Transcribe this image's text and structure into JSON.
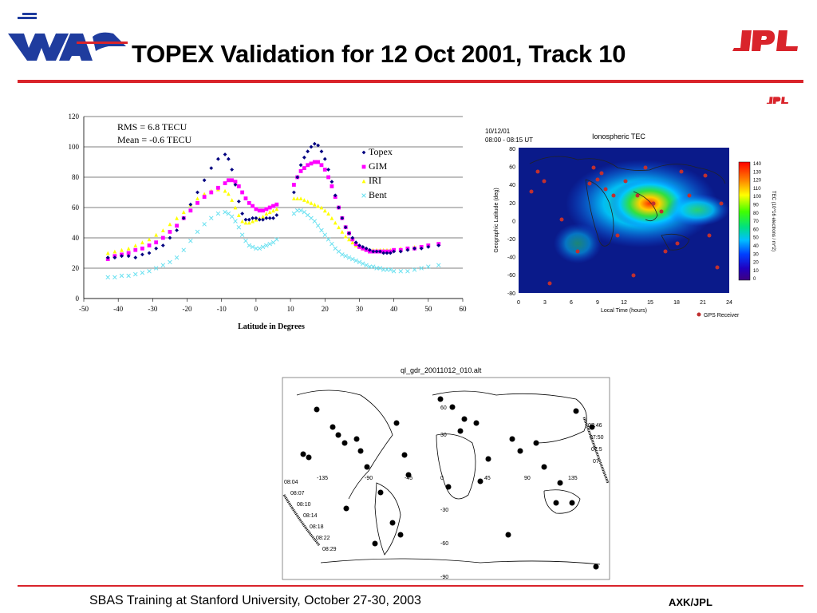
{
  "slide": {
    "title": "TOPEX Validation for 12 Oct 2001, Track 10",
    "footer": "SBAS Training at Stanford University, October 27-30, 2003",
    "author": "AXK/JPL",
    "logo_text": "JPL",
    "accent_color": "#d9242b",
    "waas_color": "#1f3c9e"
  },
  "chart_data": {
    "type": "scatter",
    "title": "",
    "xlabel": "Latitude in Degrees",
    "ylabel": "",
    "xlim": [
      -50,
      60
    ],
    "ylim": [
      0,
      120
    ],
    "x_ticks": [
      -50,
      -40,
      -30,
      -20,
      -10,
      0,
      10,
      20,
      30,
      40,
      50,
      60
    ],
    "y_ticks": [
      0,
      20,
      40,
      60,
      80,
      100,
      120
    ],
    "grid": "horizontal",
    "legend_position": "top-right",
    "annotations": [
      "RMS = 6.8 TECU",
      "Mean = -0.6 TECU"
    ],
    "series": [
      {
        "name": "Topex",
        "color": "#000080",
        "marker": "diamond",
        "x": [
          -43,
          -41,
          -39,
          -37,
          -35,
          -33,
          -31,
          -29,
          -27,
          -25,
          -23,
          -21,
          -19,
          -17,
          -15,
          -13,
          -11,
          -9,
          -8,
          -7,
          -6,
          -5,
          -4,
          -3,
          -2,
          -1,
          0,
          1,
          2,
          3,
          4,
          5,
          6,
          11,
          12,
          13,
          14,
          15,
          16,
          17,
          18,
          19,
          20,
          21,
          22,
          23,
          24,
          25,
          26,
          27,
          28,
          29,
          30,
          31,
          32,
          33,
          34,
          35,
          36,
          37,
          38,
          39,
          40,
          42,
          44,
          46,
          48,
          50,
          53
        ],
        "y": [
          27,
          27,
          28,
          28,
          27,
          29,
          30,
          33,
          35,
          40,
          45,
          53,
          62,
          70,
          78,
          86,
          92,
          95,
          92,
          85,
          75,
          64,
          56,
          52,
          52,
          53,
          53,
          52,
          52,
          53,
          53,
          53,
          55,
          70,
          80,
          88,
          93,
          97,
          100,
          102,
          101,
          97,
          92,
          85,
          77,
          68,
          60,
          53,
          47,
          43,
          40,
          37,
          35,
          34,
          33,
          32,
          31,
          31,
          31,
          30,
          30,
          30,
          31,
          31,
          32,
          33,
          33,
          34,
          35
        ]
      },
      {
        "name": "GIM",
        "color": "#ff00ff",
        "marker": "square",
        "x": [
          -43,
          -41,
          -39,
          -37,
          -35,
          -33,
          -31,
          -29,
          -27,
          -25,
          -23,
          -21,
          -19,
          -17,
          -15,
          -13,
          -11,
          -9,
          -8,
          -7,
          -6,
          -5,
          -4,
          -3,
          -2,
          -1,
          0,
          1,
          2,
          3,
          4,
          5,
          6,
          11,
          12,
          13,
          14,
          15,
          16,
          17,
          18,
          19,
          20,
          21,
          22,
          23,
          24,
          25,
          26,
          27,
          28,
          29,
          30,
          31,
          32,
          33,
          34,
          35,
          36,
          37,
          38,
          39,
          40,
          42,
          44,
          46,
          48,
          50,
          53
        ],
        "y": [
          26,
          28,
          29,
          30,
          32,
          33,
          35,
          37,
          40,
          44,
          48,
          53,
          58,
          63,
          67,
          70,
          73,
          76,
          78,
          78,
          77,
          74,
          70,
          66,
          63,
          61,
          59,
          58,
          58,
          59,
          60,
          61,
          62,
          75,
          80,
          84,
          86,
          88,
          89,
          90,
          90,
          88,
          85,
          80,
          74,
          67,
          60,
          53,
          47,
          43,
          39,
          36,
          34,
          33,
          32,
          31,
          31,
          31,
          31,
          31,
          31,
          31,
          32,
          32,
          33,
          33,
          34,
          35,
          36
        ]
      },
      {
        "name": "IRI",
        "color": "#ffff00",
        "marker": "triangle",
        "x": [
          -43,
          -41,
          -39,
          -37,
          -35,
          -33,
          -31,
          -29,
          -27,
          -25,
          -23,
          -21,
          -19,
          -17,
          -15,
          -13,
          -11,
          -9,
          -8,
          -7,
          -6,
          -5,
          -4,
          -3,
          -2,
          -1,
          0,
          1,
          2,
          3,
          4,
          5,
          6,
          11,
          12,
          13,
          14,
          15,
          16,
          17,
          18,
          19,
          20,
          21,
          22,
          23,
          24,
          25,
          26,
          27,
          28,
          29,
          30,
          31,
          32,
          33,
          34,
          35,
          36,
          37,
          38,
          39,
          40,
          42,
          44,
          46,
          48,
          50,
          53
        ],
        "y": [
          30,
          31,
          32,
          33,
          35,
          37,
          39,
          42,
          45,
          49,
          53,
          57,
          62,
          66,
          69,
          71,
          72,
          71,
          69,
          65,
          60,
          55,
          51,
          50,
          50,
          51,
          52,
          53,
          54,
          56,
          57,
          58,
          59,
          66,
          66,
          66,
          65,
          64,
          63,
          62,
          61,
          60,
          58,
          56,
          53,
          50,
          47,
          44,
          41,
          39,
          37,
          35,
          34,
          33,
          33,
          32,
          32,
          32,
          32,
          32,
          32,
          32,
          32,
          33,
          33,
          34,
          34,
          35,
          36
        ]
      },
      {
        "name": "Bent",
        "color": "#66e0f0",
        "marker": "x",
        "x": [
          -43,
          -41,
          -39,
          -37,
          -35,
          -33,
          -31,
          -29,
          -27,
          -25,
          -23,
          -21,
          -19,
          -17,
          -15,
          -13,
          -11,
          -9,
          -8,
          -7,
          -6,
          -5,
          -4,
          -3,
          -2,
          -1,
          0,
          1,
          2,
          3,
          4,
          5,
          6,
          11,
          12,
          13,
          14,
          15,
          16,
          17,
          18,
          19,
          20,
          21,
          22,
          23,
          24,
          25,
          26,
          27,
          28,
          29,
          30,
          31,
          32,
          33,
          34,
          35,
          36,
          37,
          38,
          39,
          40,
          42,
          44,
          46,
          48,
          50,
          53
        ],
        "y": [
          14,
          14,
          15,
          15,
          16,
          17,
          18,
          20,
          22,
          24,
          27,
          32,
          38,
          44,
          49,
          53,
          56,
          57,
          56,
          54,
          51,
          47,
          42,
          38,
          35,
          34,
          33,
          33,
          34,
          35,
          36,
          37,
          39,
          56,
          58,
          58,
          57,
          55,
          53,
          51,
          48,
          45,
          42,
          39,
          36,
          33,
          31,
          29,
          28,
          27,
          26,
          25,
          24,
          23,
          22,
          21,
          21,
          20,
          20,
          19,
          19,
          19,
          18,
          18,
          18,
          19,
          20,
          21,
          22
        ]
      }
    ]
  },
  "tec_panel": {
    "date": "10/12/01",
    "time_range": "08:00 - 08:15 UT",
    "title": "Ionospheric TEC",
    "ylabel": "Geographic Latitude (deg)",
    "xlabel": "Local Time (hours)",
    "x_ticks": [
      "0",
      "3",
      "6",
      "9",
      "12",
      "15",
      "18",
      "21",
      "24"
    ],
    "y_ticks": [
      "80",
      "60",
      "40",
      "20",
      "0",
      "-20",
      "-40",
      "-60",
      "-80"
    ],
    "colorbar_label": "TEC (10^16 electrons / m^2)",
    "colorbar_ticks": [
      "140",
      "130",
      "120",
      "110",
      "100",
      "90",
      "80",
      "70",
      "60",
      "50",
      "40",
      "30",
      "20",
      "10",
      "0"
    ],
    "legend": "GPS Receiver"
  },
  "track_panel": {
    "title": "ql_gdr_20011012_010.alt",
    "lon_labels": [
      "-135",
      "-90",
      "-45",
      "0",
      "45",
      "90",
      "135"
    ],
    "lat_labels": [
      "60",
      "30",
      "-30",
      "-60",
      "-90"
    ],
    "times_left": [
      "08:04",
      "08:07",
      "08:10",
      "08:14",
      "08:18",
      "08:22",
      "08:29"
    ],
    "times_right": [
      "07:46",
      "07:50",
      "07:5",
      "07"
    ]
  }
}
